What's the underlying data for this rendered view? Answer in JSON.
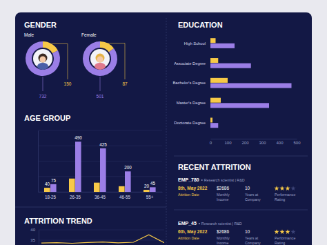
{
  "page": {
    "gender_title": "GENDER"
  },
  "chart_data": [
    {
      "type": "pie",
      "title": "Male",
      "values": [
        150,
        732
      ],
      "colors": [
        "#f7c948",
        "#9b7ee6"
      ],
      "data_labels": true
    },
    {
      "type": "pie",
      "title": "Female",
      "values": [
        87,
        501
      ],
      "colors": [
        "#f7c948",
        "#9b7ee6"
      ],
      "data_labels": true
    },
    {
      "type": "bar",
      "title": "EDUCATION",
      "orientation": "horizontal",
      "categories": [
        "High School",
        "Associate Degree",
        "Bachelor's Degree",
        "Master's Degree",
        "Doctorate Degree"
      ],
      "series": [
        {
          "color": "#f7c948",
          "values": [
            30,
            45,
            100,
            60,
            12
          ]
        },
        {
          "color": "#9b7ee6",
          "values": [
            140,
            235,
            470,
            340,
            45
          ]
        }
      ],
      "xlim": [
        0,
        500
      ],
      "xticks": [
        0,
        100,
        200,
        300,
        400,
        500
      ]
    },
    {
      "type": "bar",
      "title": "AGE GROUP",
      "categories": [
        "18-25",
        "26-35",
        "36-45",
        "46-55",
        "55+"
      ],
      "series": [
        {
          "color": "#f7c948",
          "values": [
            40,
            130,
            90,
            55,
            20
          ],
          "value_labels": [
            "40",
            null,
            null,
            null,
            "20"
          ]
        },
        {
          "color": "#9b7ee6",
          "values": [
            75,
            490,
            425,
            200,
            45
          ],
          "value_labels": [
            "75",
            "490",
            "425",
            "200",
            "45"
          ]
        }
      ],
      "ylim": [
        0,
        600
      ],
      "yticks": [
        0,
        150,
        300,
        450,
        600
      ],
      "grid": true,
      "data_labels": true,
      "tick_labels": "x"
    },
    {
      "type": "line",
      "title": "ATTRITION TREND",
      "categories": [
        null,
        null,
        null,
        null,
        null,
        null,
        null,
        null,
        null
      ],
      "series": [
        {
          "color": "#f7c948",
          "values": [
            33.6,
            33.8,
            33.5,
            33.9,
            34.1,
            33.7,
            34.0,
            37.6,
            33.8
          ]
        }
      ],
      "ylim": [
        33,
        40
      ],
      "yticks": [
        35,
        40
      ],
      "grid": true
    }
  ],
  "recent_attrition": {
    "title": "RECENT ATTRITION",
    "employees": [
      {
        "id": "EMP_780",
        "role": "Research scientist | R&D",
        "attrition_date": "8th, May 2022",
        "attrition_date_label": "Attrition Date",
        "monthly_income": "$2686",
        "monthly_income_label": "Monthly Income",
        "years": "10",
        "years_label": "Years at Company",
        "rating": 3,
        "rating_max": 4,
        "rating_label": "Performance Rating"
      },
      {
        "id": "EMP_45",
        "role": "Research scientist | R&D",
        "attrition_date": "6th, May 2022",
        "attrition_date_label": "Attrition Date",
        "monthly_income": "$2686",
        "monthly_income_label": "Monthly Income",
        "years": "10",
        "years_label": "Years at Company",
        "rating": 3,
        "rating_max": 4,
        "rating_label": "Performance Rating"
      }
    ]
  }
}
